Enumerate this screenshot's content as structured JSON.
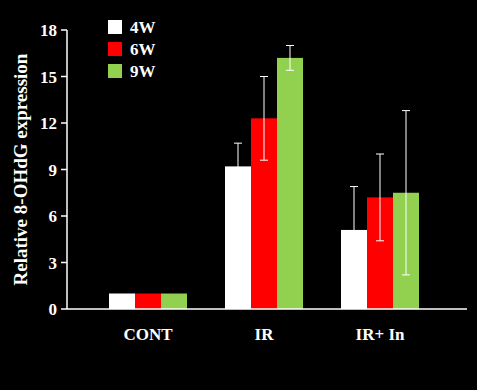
{
  "chart_data": {
    "type": "bar",
    "y_label": "Relative 8-OHdG expression",
    "categories": [
      "CONT",
      "IR",
      "IR+ In"
    ],
    "series": [
      {
        "name": "4W",
        "color": "#ffffff",
        "values": [
          1,
          9.2,
          5.1
        ],
        "errors": [
          null,
          1.5,
          2.8
        ]
      },
      {
        "name": "6W",
        "color": "#ff0000",
        "values": [
          1,
          12.3,
          7.2
        ],
        "errors": [
          null,
          2.7,
          2.8
        ]
      },
      {
        "name": "9W",
        "color": "#92d050",
        "values": [
          1,
          16.2,
          7.5
        ],
        "errors": [
          null,
          0.8,
          5.3
        ]
      }
    ],
    "ylim": [
      0,
      18
    ],
    "yticks": [
      0,
      3,
      6,
      9,
      12,
      15,
      18
    ],
    "grid": false,
    "legend": "top-left"
  }
}
